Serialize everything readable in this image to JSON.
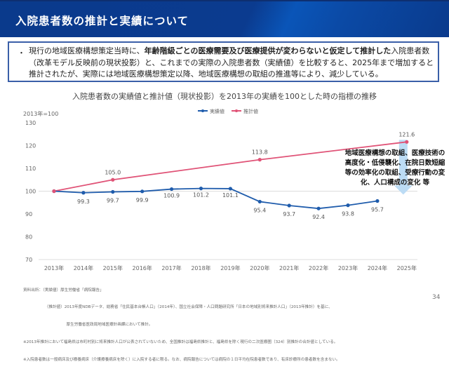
{
  "header": {
    "title": "入院患者数の推計と実績について"
  },
  "summary": {
    "bullet": "・",
    "text_before": "現行の地域医療構想策定当時に、",
    "text_bold": "年齢階級ごとの医療需要及び医療提供が変わらないと仮定して推計した",
    "text_after": "入院患者数（改革モデル反映前の現状投影）と、これまでの実際の入院患者数（実績値）を比較すると、2025年まで増加すると推計されたが、実際には地域医療構想策定以降、地域医療構想の取組の推進等により、減少している。"
  },
  "chart_data": {
    "type": "line",
    "title": "入院患者数の実績値と推計値（現状投影）を2013年の実績を100とした時の指標の推移",
    "ylabel": "2013年=100",
    "xlabel": "",
    "categories": [
      "2013年",
      "2014年",
      "2015年",
      "2016年",
      "2017年",
      "2018年",
      "2019年",
      "2020年",
      "2021年",
      "2022年",
      "2023年",
      "2024年",
      "2025年"
    ],
    "ylim": [
      70,
      130
    ],
    "yticks": [
      70,
      80,
      90,
      100,
      110,
      120,
      130
    ],
    "grid": "reference line at 100 and baseline at 70",
    "legend_position": "top-center",
    "series": [
      {
        "name": "実績値",
        "color": "#1f5cac",
        "values": [
          100,
          99.3,
          99.7,
          99.9,
          100.9,
          101.2,
          101.1,
          95.4,
          93.7,
          92.4,
          93.8,
          95.7,
          null
        ],
        "labels": [
          null,
          "99.3",
          "99.7",
          "99.9",
          "100.9",
          "101.2",
          "101.1",
          "95.4",
          "93.7",
          "92.4",
          "93.8",
          "95.7",
          null
        ]
      },
      {
        "name": "推計値",
        "color": "#e05377",
        "points": [
          {
            "category": "2013年",
            "value": 100,
            "label": null
          },
          {
            "category": "2015年",
            "value": 105.0,
            "label": "105.0"
          },
          {
            "category": "2020年",
            "value": 113.8,
            "label": "113.8"
          },
          {
            "category": "2025年",
            "value": 121.6,
            "label": "121.6"
          }
        ]
      }
    ],
    "annotation": {
      "lines": [
        "地域医療構想の取組、医療技術の",
        "高度化・低侵襲化、在院日数短縮",
        "等の効率化の取組、受療行動の変",
        "化、人口構成の変化 等"
      ],
      "arrow": "down",
      "arrow_color": "#bcdcf5"
    }
  },
  "footnotes": [
    "資料出所：（実績値）厚生労働省「病院報告」",
    "　　　　　　（推計値）2013年度NDBデータ、総務省「住民基本台帳人口」（2014年）、国立社会保障・人口問題研究所「日本の地域別将来推計人口」（2013年推計）を基に、",
    "　　　　　　　　　　　厚生労働省医政局地域医療計画課において推計。",
    "※2013年推計において福島県は市町村別に将来推計人口が公表されていないため、全国推計は福島県推計と、福島県を除く現行の二次医療圏（324）別推計の合計値としている。",
    "※入院患者数は一般病床及び療養病床（介護療養病床を除く）に入院する者に限る。なお、病院報告については病院の１日平均在院患者数であり、有床診療所の患者数を含まない。"
  ],
  "page_number": "34"
}
